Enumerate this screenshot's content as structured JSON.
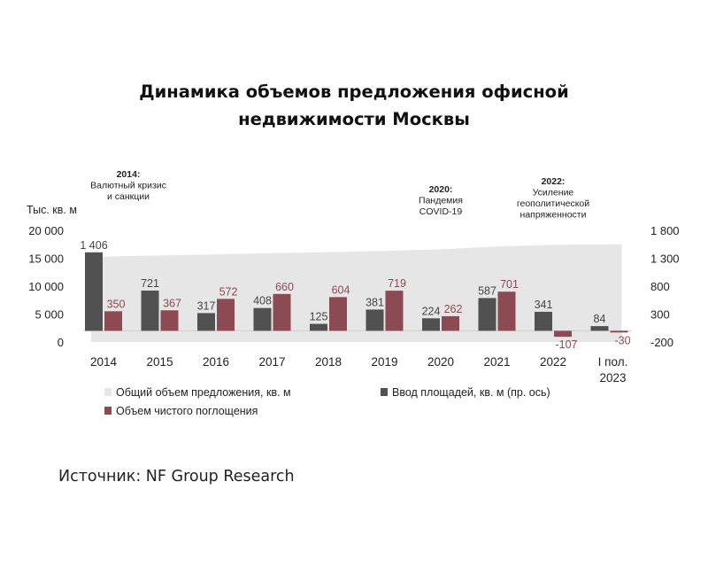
{
  "title_lines": [
    "Динамика объемов предложения офисной",
    "недвижимости Москвы"
  ],
  "source": "Источник: NF Group Research",
  "colors": {
    "total": "#e6e6e6",
    "commissioning": "#515151",
    "absorption": "#8c4b52",
    "axis": "#9a9a9a",
    "text": "#222222"
  },
  "chart_data": {
    "type": "bar",
    "categories": [
      [
        "2014"
      ],
      [
        "2015"
      ],
      [
        "2016"
      ],
      [
        "2017"
      ],
      [
        "2018"
      ],
      [
        "2019"
      ],
      [
        "2020"
      ],
      [
        "2021"
      ],
      [
        "2022"
      ],
      [
        "I пол.",
        "2023"
      ]
    ],
    "left_axis": {
      "label": "Тыс. кв. м",
      "ticks": [
        "20 000",
        "15 000",
        "10 000",
        "5 000",
        "0"
      ],
      "range": [
        0,
        20000
      ]
    },
    "right_axis": {
      "ticks": [
        "1 800",
        "1 300",
        "800",
        "300",
        "-200"
      ],
      "range": [
        -200,
        1800
      ]
    },
    "series": [
      {
        "name": "Общий объем предложения, кв. м",
        "kind": "area",
        "axis": "left",
        "values": [
          15300,
          15500,
          15700,
          15900,
          16100,
          16300,
          16600,
          17100,
          17400,
          17500
        ]
      },
      {
        "name": "Ввод площадей, кв. м (пр. ось)",
        "kind": "bar",
        "axis": "right",
        "values": [
          1406,
          721,
          317,
          408,
          125,
          381,
          224,
          587,
          341,
          84
        ],
        "labels": [
          "1 406",
          "721",
          "317",
          "408",
          "125",
          "381",
          "224",
          "587",
          "341",
          "84"
        ]
      },
      {
        "name": "Объем чистого поглощения",
        "kind": "bar",
        "axis": "right",
        "values": [
          350,
          367,
          572,
          660,
          604,
          719,
          262,
          701,
          -107,
          -30
        ],
        "labels": [
          "350",
          "367",
          "572",
          "660",
          "604",
          "719",
          "262",
          "701",
          "-107",
          "-30"
        ]
      }
    ],
    "annotations": [
      {
        "category_index": 0,
        "lines": [
          "2014:",
          "Валютный кризис",
          "и санкции"
        ]
      },
      {
        "category_index": 6,
        "lines": [
          "2020:",
          "Пандемия",
          "COVID-19"
        ]
      },
      {
        "category_index": 8,
        "lines": [
          "2022:",
          "Усиление",
          "геополитической",
          "напряженности"
        ]
      }
    ],
    "legend_position": "bottom"
  }
}
